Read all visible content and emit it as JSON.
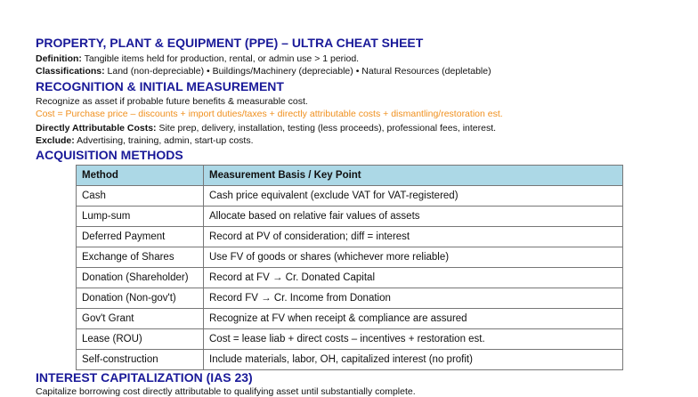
{
  "title": "PROPERTY, PLANT & EQUIPMENT (PPE) – ULTRA CHEAT SHEET",
  "definition": {
    "label": "Definition:",
    "text": " Tangible items held for production, rental, or admin use > 1 period."
  },
  "classifications": {
    "label": "Classifications:",
    "text": " Land (non-depreciable) • Buildings/Machinery (depreciable) • Natural Resources (depletable)"
  },
  "recognition": {
    "heading": "RECOGNITION & INITIAL MEASUREMENT",
    "line1": "Recognize as asset if probable future benefits & measurable cost.",
    "cost_formula": "Cost = Purchase price – discounts + import duties/taxes + directly attributable costs + dismantling/restoration est.",
    "direct_label": "Directly Attributable Costs:",
    "direct_text": " Site prep, delivery, installation, testing (less proceeds), professional fees, interest.",
    "exclude_label": "Exclude:",
    "exclude_text": " Advertising, training, admin, start-up costs."
  },
  "acquisition": {
    "heading": "ACQUISITION METHODS",
    "columns": [
      "Method",
      "Measurement Basis / Key Point"
    ],
    "rows": [
      [
        "Cash",
        "Cash price equivalent (exclude VAT for VAT-registered)"
      ],
      [
        "Lump-sum",
        "Allocate based on relative fair values of assets"
      ],
      [
        "Deferred Payment",
        "Record at PV of consideration; diff = interest"
      ],
      [
        "Exchange of Shares",
        "Use FV of goods or shares (whichever more reliable)"
      ],
      [
        "Donation (Shareholder)",
        "Record at FV → Cr. Donated Capital"
      ],
      [
        "Donation (Non-gov't)",
        "Record FV → Cr. Income from Donation"
      ],
      [
        "Gov't Grant",
        "Recognize at FV when receipt & compliance are assured"
      ],
      [
        "Lease (ROU)",
        "Cost = lease liab + direct costs – incentives + restoration est."
      ],
      [
        "Self-construction",
        "Include materials, labor, OH, capitalized interest (no profit)"
      ]
    ]
  },
  "interest": {
    "heading": "INTEREST CAPITALIZATION (IAS 23)",
    "line1": "Capitalize borrowing cost directly attributable to qualifying asset until substantially complete."
  },
  "colors": {
    "heading": "#1a1a99",
    "formula": "#f0901e",
    "table_header": "#acd8e6"
  }
}
